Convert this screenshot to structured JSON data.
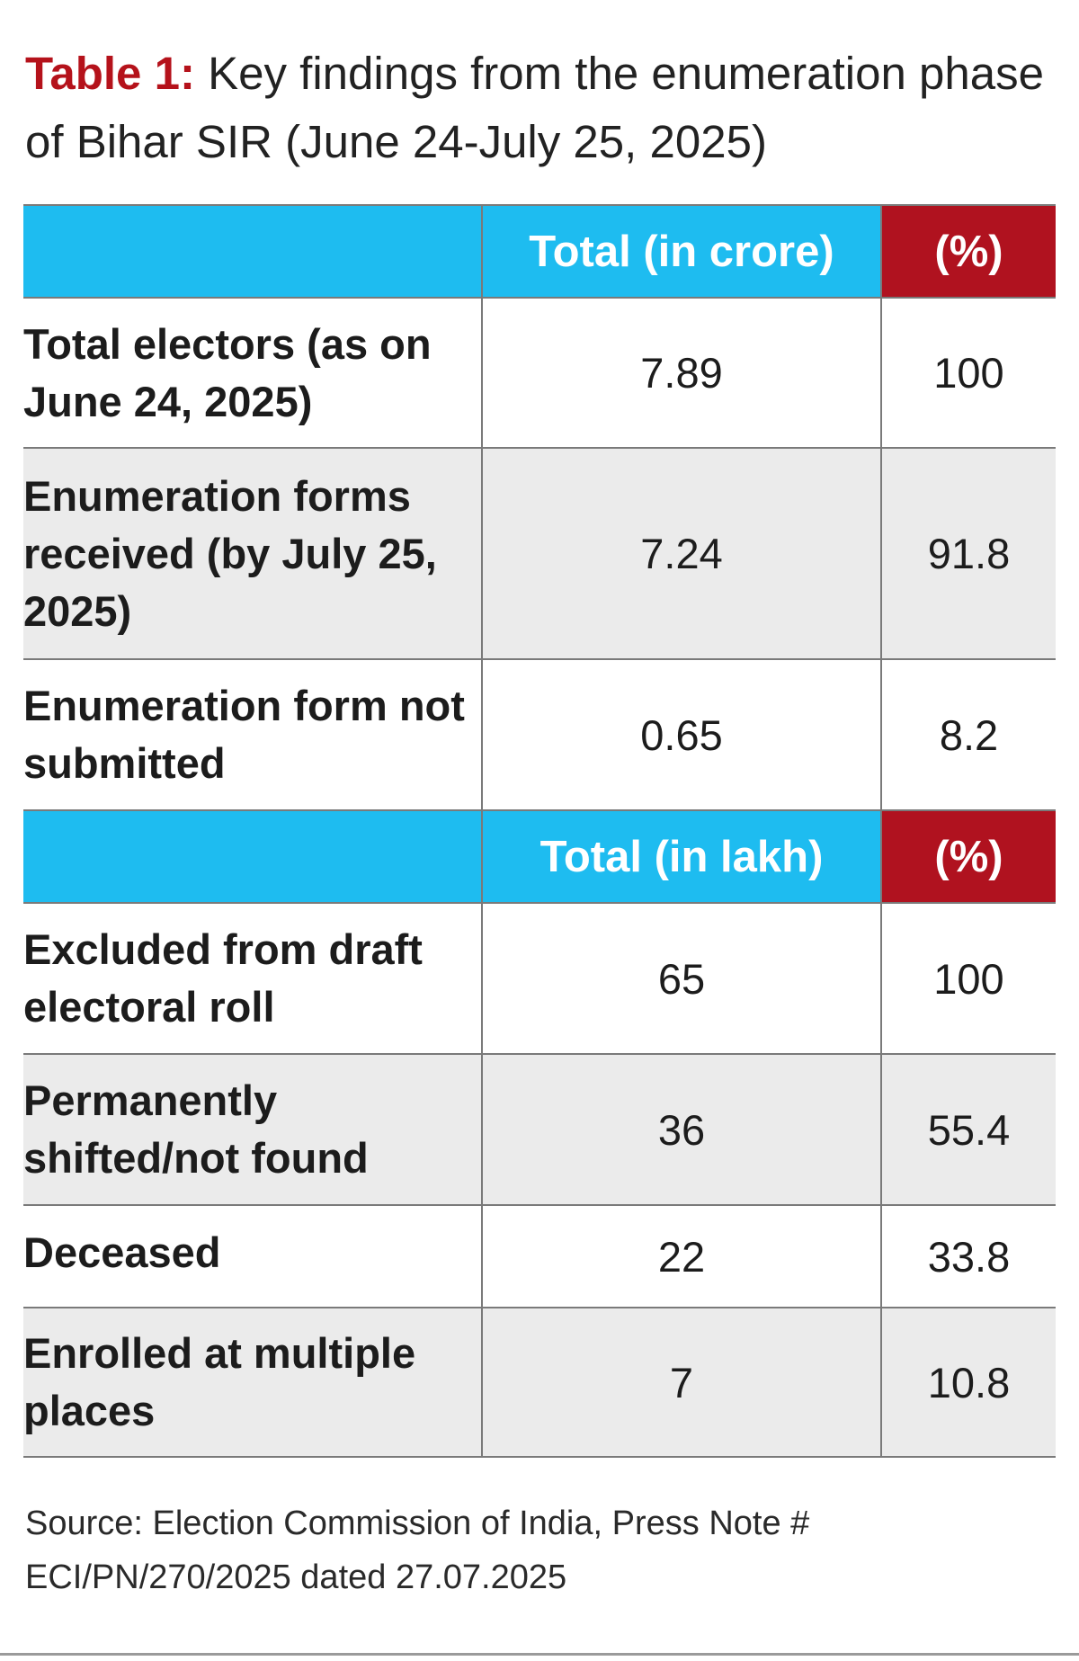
{
  "title": {
    "label": "Table 1:",
    "text": "Key findings from the enumeration phase of Bihar SIR (June 24-July 25, 2025)"
  },
  "chart_data": {
    "type": "table",
    "sections": [
      {
        "header": {
          "total": "Total (in crore)",
          "pct": "(%)"
        },
        "rows": [
          {
            "label": "Total electors (as on June 24, 2025)",
            "total": "7.89",
            "pct": "100"
          },
          {
            "label": "Enumeration forms received (by July 25, 2025)",
            "total": "7.24",
            "pct": "91.8"
          },
          {
            "label": "Enumeration form not submitted",
            "total": "0.65",
            "pct": "8.2"
          }
        ]
      },
      {
        "header": {
          "total": "Total (in lakh)",
          "pct": "(%)"
        },
        "rows": [
          {
            "label": "Excluded from draft electoral roll",
            "total": "65",
            "pct": "100"
          },
          {
            "label": "Permanently shifted/not found",
            "total": "36",
            "pct": "55.4"
          },
          {
            "label": "Deceased",
            "total": "22",
            "pct": "33.8"
          },
          {
            "label": "Enrolled at multiple places",
            "total": "7",
            "pct": "10.8"
          }
        ]
      }
    ]
  },
  "source": "Source: Election Commission of India, Press Note # ECI/PN/270/2025 dated 27.07.2025",
  "colors": {
    "header_blue": "#1ebcf0",
    "header_red": "#b0121f",
    "title_red": "#b5121b",
    "row_grey": "#ebebeb"
  }
}
